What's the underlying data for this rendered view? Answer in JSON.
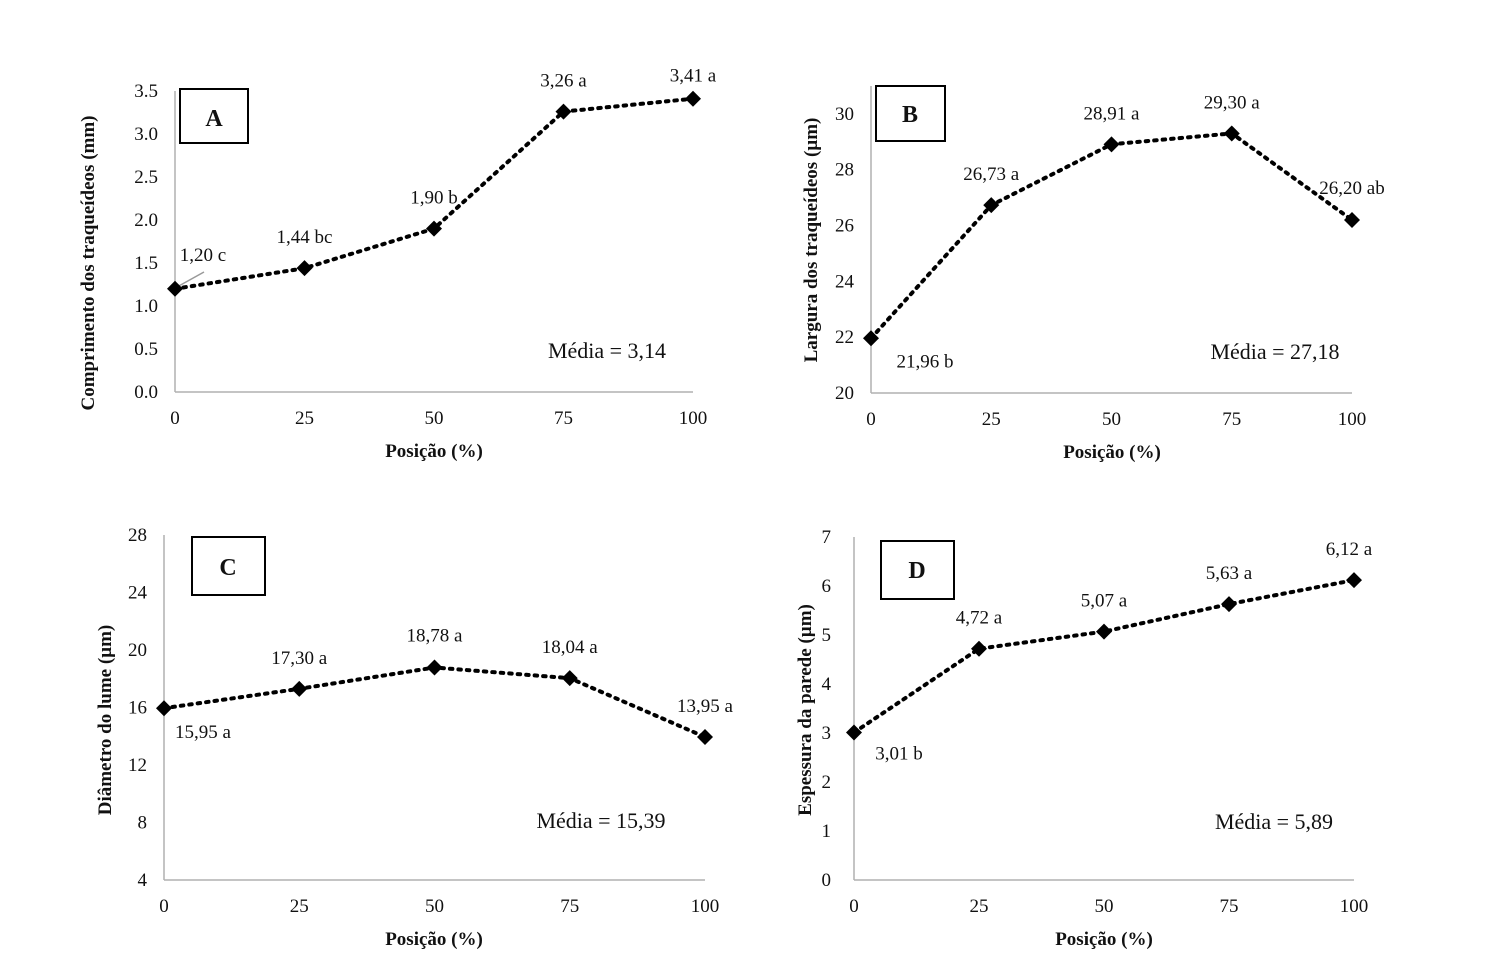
{
  "chart_data": [
    {
      "type": "line",
      "panel": "A",
      "xlabel": "Posição (%)",
      "ylabel": "Comprimento dos traqueídeos (mm)",
      "x": [
        0,
        25,
        50,
        75,
        100
      ],
      "x_ticks": [
        "0",
        "25",
        "50",
        "75",
        "100"
      ],
      "values": [
        1.2,
        1.44,
        1.9,
        3.26,
        3.41
      ],
      "point_labels": [
        "1,20 c",
        "1,44 bc",
        "1,90 b",
        "3,26 a",
        "3,41 a"
      ],
      "ylim": [
        0,
        3.5
      ],
      "y_ticks": [
        "0.0",
        "0.5",
        "1.0",
        "1.5",
        "2.0",
        "2.5",
        "3.0",
        "3.5"
      ],
      "annotation": "Média = 3,14",
      "marker": "diamond",
      "line_style": "dotted",
      "color": "#000000"
    },
    {
      "type": "line",
      "panel": "B",
      "xlabel": "Posição (%)",
      "ylabel": "Largura dos traqueídeos (µm)",
      "x": [
        0,
        25,
        50,
        75,
        100
      ],
      "x_ticks": [
        "0",
        "25",
        "50",
        "75",
        "100"
      ],
      "values": [
        21.96,
        26.73,
        28.91,
        29.3,
        26.2
      ],
      "point_labels": [
        "21,96 b",
        "26,73 a",
        "28,91 a",
        "29,30 a",
        "26,20 ab"
      ],
      "ylim": [
        20,
        31
      ],
      "y_ticks": [
        "20",
        "22",
        "24",
        "26",
        "28",
        "30"
      ],
      "annotation": "Média = 27,18",
      "marker": "diamond",
      "line_style": "dotted",
      "color": "#000000"
    },
    {
      "type": "line",
      "panel": "C",
      "xlabel": "Posição (%)",
      "ylabel": "Diâmetro do lume (µm)",
      "x": [
        0,
        25,
        50,
        75,
        100
      ],
      "x_ticks": [
        "0",
        "25",
        "50",
        "75",
        "100"
      ],
      "values": [
        15.95,
        17.3,
        18.78,
        18.04,
        13.95
      ],
      "point_labels": [
        "15,95 a",
        "17,30 a",
        "18,78 a",
        "18,04 a",
        "13,95 a"
      ],
      "ylim": [
        4,
        28
      ],
      "y_ticks": [
        "4",
        "8",
        "12",
        "16",
        "20",
        "24",
        "28"
      ],
      "annotation": "Média = 15,39",
      "marker": "diamond",
      "line_style": "dotted",
      "color": "#000000"
    },
    {
      "type": "line",
      "panel": "D",
      "xlabel": "Posição (%)",
      "ylabel": "Espessura da parede (µm)",
      "x": [
        0,
        25,
        50,
        75,
        100
      ],
      "x_ticks": [
        "0",
        "25",
        "50",
        "75",
        "100"
      ],
      "values": [
        3.01,
        4.72,
        5.07,
        5.63,
        6.12
      ],
      "point_labels": [
        "3,01 b",
        "4,72 a",
        "5,07 a",
        "5,63 a",
        "6,12 a"
      ],
      "ylim": [
        0,
        7
      ],
      "y_ticks": [
        "0",
        "1",
        "2",
        "3",
        "4",
        "5",
        "6",
        "7"
      ],
      "annotation": "Média = 5,89",
      "marker": "diamond",
      "line_style": "dotted",
      "color": "#000000"
    }
  ]
}
